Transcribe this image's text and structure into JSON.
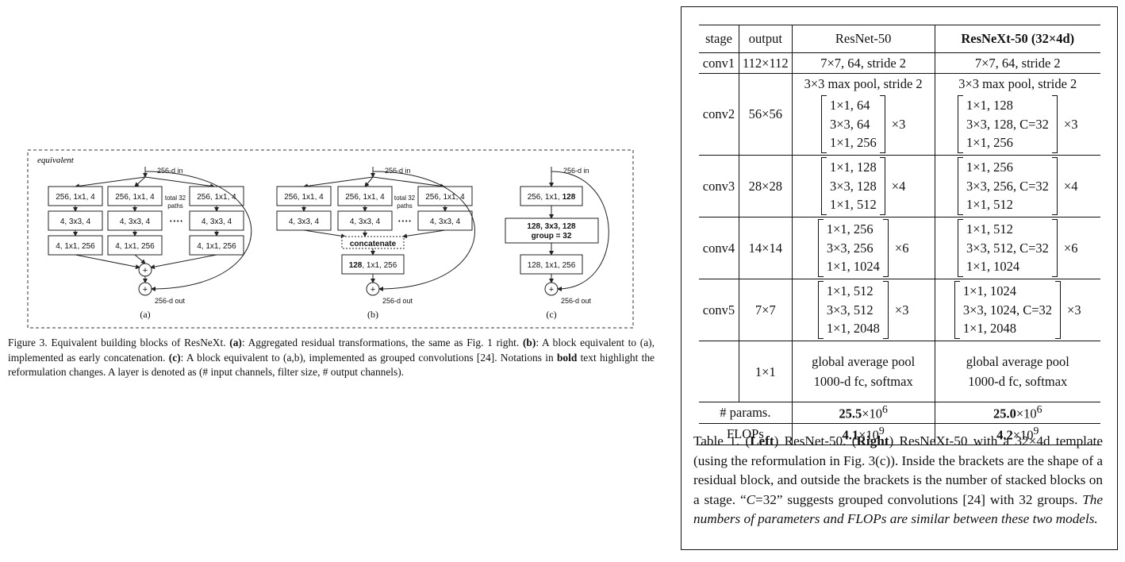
{
  "figure": {
    "equivalent_label": "equivalent",
    "in_label": "256-d in",
    "out_label": "256-d out",
    "paths_label_a": "total 32 paths",
    "paths_label_b": "total 32 paths",
    "dots": "• • • •",
    "a": {
      "row1": [
        "256, 1x1, 4",
        "256, 1x1, 4",
        "256, 1x1, 4"
      ],
      "row2": [
        "4, 3x3, 4",
        "4, 3x3, 4",
        "4, 3x3, 4"
      ],
      "row3": [
        "4, 1x1, 256",
        "4, 1x1, 256",
        "4, 1x1, 256"
      ],
      "sub": "(a)"
    },
    "b": {
      "row1": [
        "256, 1x1, 4",
        "256, 1x1, 4",
        "256, 1x1, 4"
      ],
      "row2": [
        "4, 3x3, 4",
        "4, 3x3, 4",
        "4, 3x3, 4"
      ],
      "concat": "concatenate",
      "final_bold": "128",
      "final_rest": ", 1x1, 256",
      "sub": "(b)"
    },
    "c": {
      "box1_a": "256, 1x1, ",
      "box1_b": "128",
      "box2_line1": "128, 3x3, 128",
      "box2_line2": "group = 32",
      "box3": "128, 1x1, 256",
      "sub": "(c)"
    },
    "plus": "+"
  },
  "figure_caption": {
    "p1": "Figure 3. Equivalent building blocks of ResNeXt. ",
    "a_tag": "(a)",
    "p2": ": Aggregated residual transformations, the same as Fig. 1 right. ",
    "b_tag": "(b)",
    "p3": ": A block equivalent to (a), implemented as early concatenation. ",
    "c_tag": "(c)",
    "p4": ": A block equivalent to (a,b), implemented as grouped convolutions [24]. Notations in ",
    "bold_word": "bold",
    "p5": " text highlight the reformulation changes. A layer is denoted as (# input channels, filter size, # output channels)."
  },
  "table": {
    "headers": [
      "stage",
      "output",
      "ResNet-50",
      "ResNeXt-50 (32×4d)"
    ],
    "conv1": {
      "stage": "conv1",
      "output": "112×112",
      "rn": "7×7, 64, stride 2",
      "rx": "7×7, 64, stride 2"
    },
    "pool": {
      "rn": "3×3 max pool, stride 2",
      "rx": "3×3 max pool, stride 2"
    },
    "conv2": {
      "stage": "conv2",
      "output": "56×56",
      "rn": [
        "1×1, 64",
        "3×3, 64",
        "1×1, 256"
      ],
      "rn_mult": "×3",
      "rx": [
        "1×1, 128",
        "3×3, 128, C=32",
        "1×1, 256"
      ],
      "rx_mult": "×3"
    },
    "conv3": {
      "stage": "conv3",
      "output": "28×28",
      "rn": [
        "1×1, 128",
        "3×3, 128",
        "1×1, 512"
      ],
      "rn_mult": "×4",
      "rx": [
        "1×1, 256",
        "3×3, 256, C=32",
        "1×1, 512"
      ],
      "rx_mult": "×4"
    },
    "conv4": {
      "stage": "conv4",
      "output": "14×14",
      "rn": [
        "1×1, 256",
        "3×3, 256",
        "1×1, 1024"
      ],
      "rn_mult": "×6",
      "rx": [
        "1×1, 512",
        "3×3, 512, C=32",
        "1×1, 1024"
      ],
      "rx_mult": "×6"
    },
    "conv5": {
      "stage": "conv5",
      "output": "7×7",
      "rn": [
        "1×1, 512",
        "3×3, 512",
        "1×1, 2048"
      ],
      "rn_mult": "×3",
      "rx": [
        "1×1, 1024",
        "3×3, 1024, C=32",
        "1×1, 2048"
      ],
      "rx_mult": "×3"
    },
    "fc": {
      "output": "1×1",
      "rn1": "global average pool",
      "rn2": "1000-d fc, softmax",
      "rx1": "global average pool",
      "rx2": "1000-d fc, softmax"
    },
    "params": {
      "label": "# params.",
      "rn_bold": "25.5",
      "rn_rest": "×10",
      "rn_exp": "6",
      "rx_bold": "25.0",
      "rx_rest": "×10",
      "rx_exp": "6"
    },
    "flops": {
      "label": "FLOPs",
      "rn_bold": "4.1",
      "rn_rest": "×10",
      "rn_exp": "9",
      "rx_bold": "4.2",
      "rx_rest": "×10",
      "rx_exp": "9"
    }
  },
  "table_caption": {
    "p1": "Table 1. (",
    "left": "Left",
    "p2": ") ResNet-50. (",
    "right": "Right",
    "p3": ") ResNeXt-50 with a 32×4d template (using the reformulation in Fig. 3(c)). Inside the brackets are the shape of a residual block, and outside the brackets is the number of stacked blocks on a stage. “",
    "c_italic": "C",
    "p4": "=32” suggests grouped convolutions [24] with 32 groups. ",
    "italic_end": "The numbers of parameters and FLOPs are similar between these two models."
  }
}
